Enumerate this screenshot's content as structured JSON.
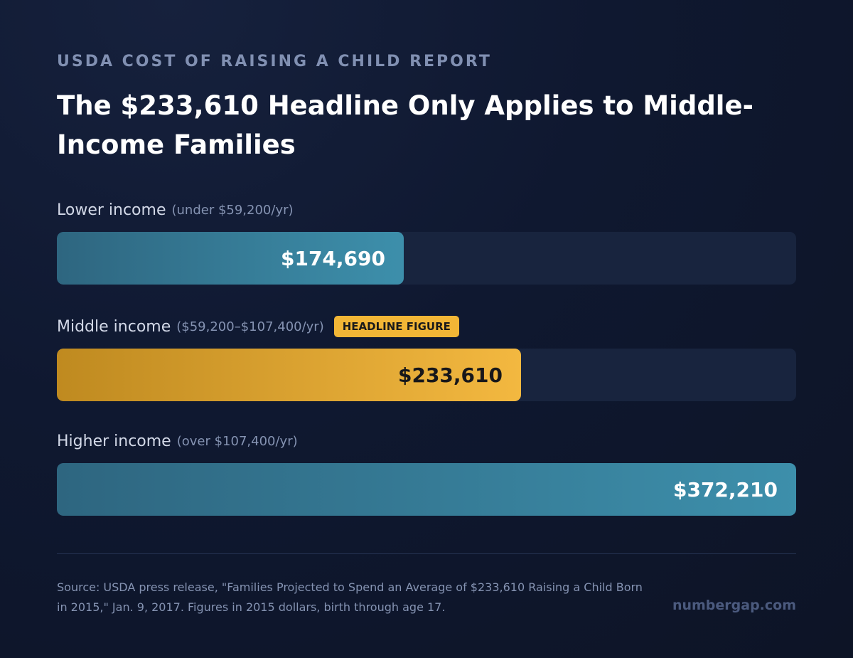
{
  "header": {
    "eyebrow": "USDA COST OF RAISING A CHILD REPORT",
    "title": "The $233,610 Headline Only Applies to Middle-Income Families"
  },
  "chart_data": {
    "type": "bar",
    "orientation": "horizontal",
    "xlim": [
      0,
      372210
    ],
    "categories": [
      "Lower income",
      "Middle income",
      "Higher income"
    ],
    "values": [
      174690,
      233610,
      372210
    ],
    "ranges": [
      "(under $59,200/yr)",
      "($59,200–$107,400/yr)",
      "(over $107,400/yr)"
    ],
    "value_labels": [
      "$174,690",
      "$233,610",
      "$372,210"
    ],
    "highlight_index": 1,
    "badge": "HEADLINE FIGURE",
    "colors": {
      "default": "#3d8fab",
      "highlight": "#f3b840",
      "track": "#18243e"
    }
  },
  "footer": {
    "source": "Source: USDA press release, \"Families Projected to Spend an Average of $233,610 Raising a Child Born in 2015,\" Jan. 9, 2017. Figures in 2015 dollars, birth through age 17.",
    "brand": "numbergap.com"
  }
}
